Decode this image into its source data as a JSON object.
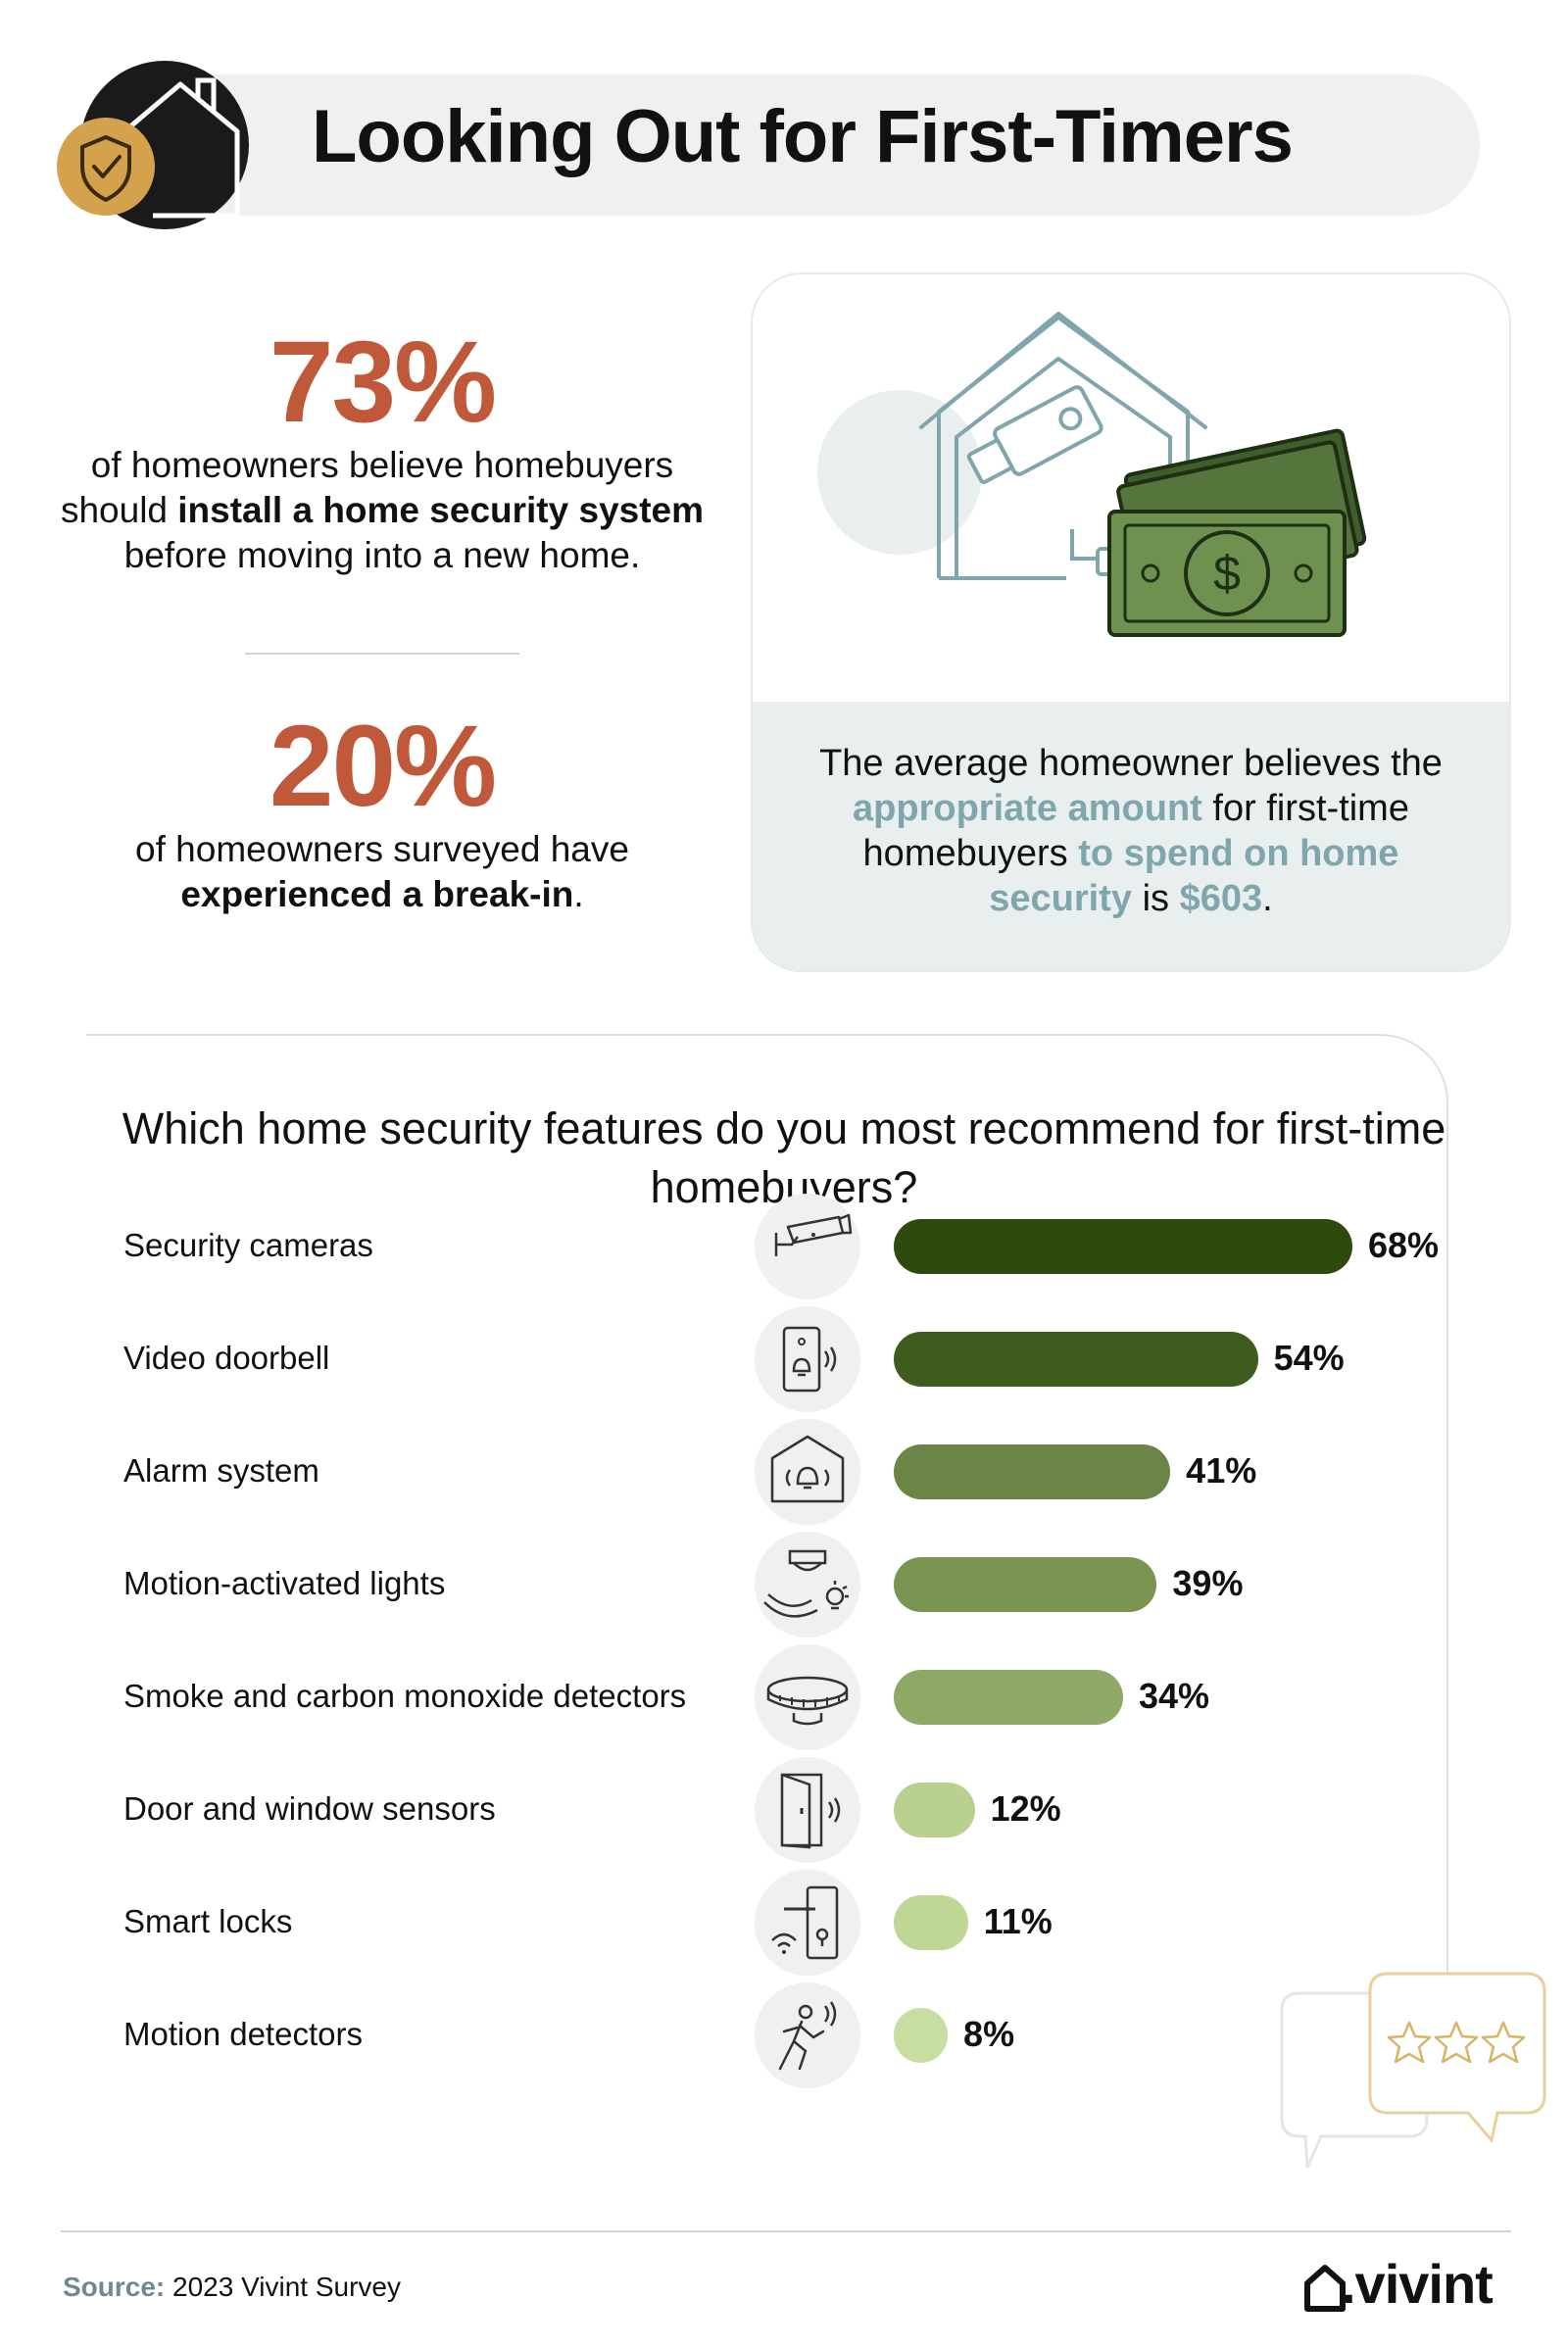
{
  "header": {
    "title": "Looking Out for First-Timers"
  },
  "stats": [
    {
      "value": "73%",
      "text_before": "of homeowners believe homebuyers should ",
      "text_bold": "install a home security system",
      "text_after": " before moving into a new home."
    },
    {
      "value": "20%",
      "text_before": "of homeowners surveyed have ",
      "text_bold": "experienced a break-in",
      "text_after": "."
    }
  ],
  "card": {
    "p1": "The average homeowner believes the ",
    "a1": "appropriate amount",
    "p2": " for first-time homebuyers ",
    "a2": "to spend on home security",
    "p3": " is ",
    "a3": "$603",
    "p4": "."
  },
  "chart_data": {
    "type": "bar",
    "title": "Which home security features do you most recommend for first-time homebuyers?",
    "categories": [
      "Security cameras",
      "Video doorbell",
      "Alarm system",
      "Motion-activated lights",
      "Smoke and carbon monoxide detectors",
      "Door and window sensors",
      "Smart locks",
      "Motion detectors"
    ],
    "values": [
      68,
      54,
      41,
      39,
      34,
      12,
      11,
      8
    ],
    "value_labels": [
      "68%",
      "54%",
      "41%",
      "39%",
      "34%",
      "12%",
      "11%",
      "8%"
    ],
    "icons": [
      "security-camera-icon",
      "video-doorbell-icon",
      "alarm-system-icon",
      "motion-light-icon",
      "smoke-detector-icon",
      "door-sensor-icon",
      "smart-lock-icon",
      "motion-detector-icon"
    ],
    "colors": [
      "#2f4a0e",
      "#3f5c1e",
      "#6a8546",
      "#7a9552",
      "#8ea865",
      "#b9d08f",
      "#bfd695",
      "#c8dea0"
    ],
    "grid": false,
    "legend": "none"
  },
  "footer": {
    "source_label": "Source:",
    "source_text": " 2023 Vivint Survey",
    "brand": ".vivint"
  },
  "colors": {
    "accent_red": "#c0583a",
    "accent_teal": "#7fa6ad",
    "panel_gray": "#eef1f0",
    "gold": "#d4a24c"
  }
}
